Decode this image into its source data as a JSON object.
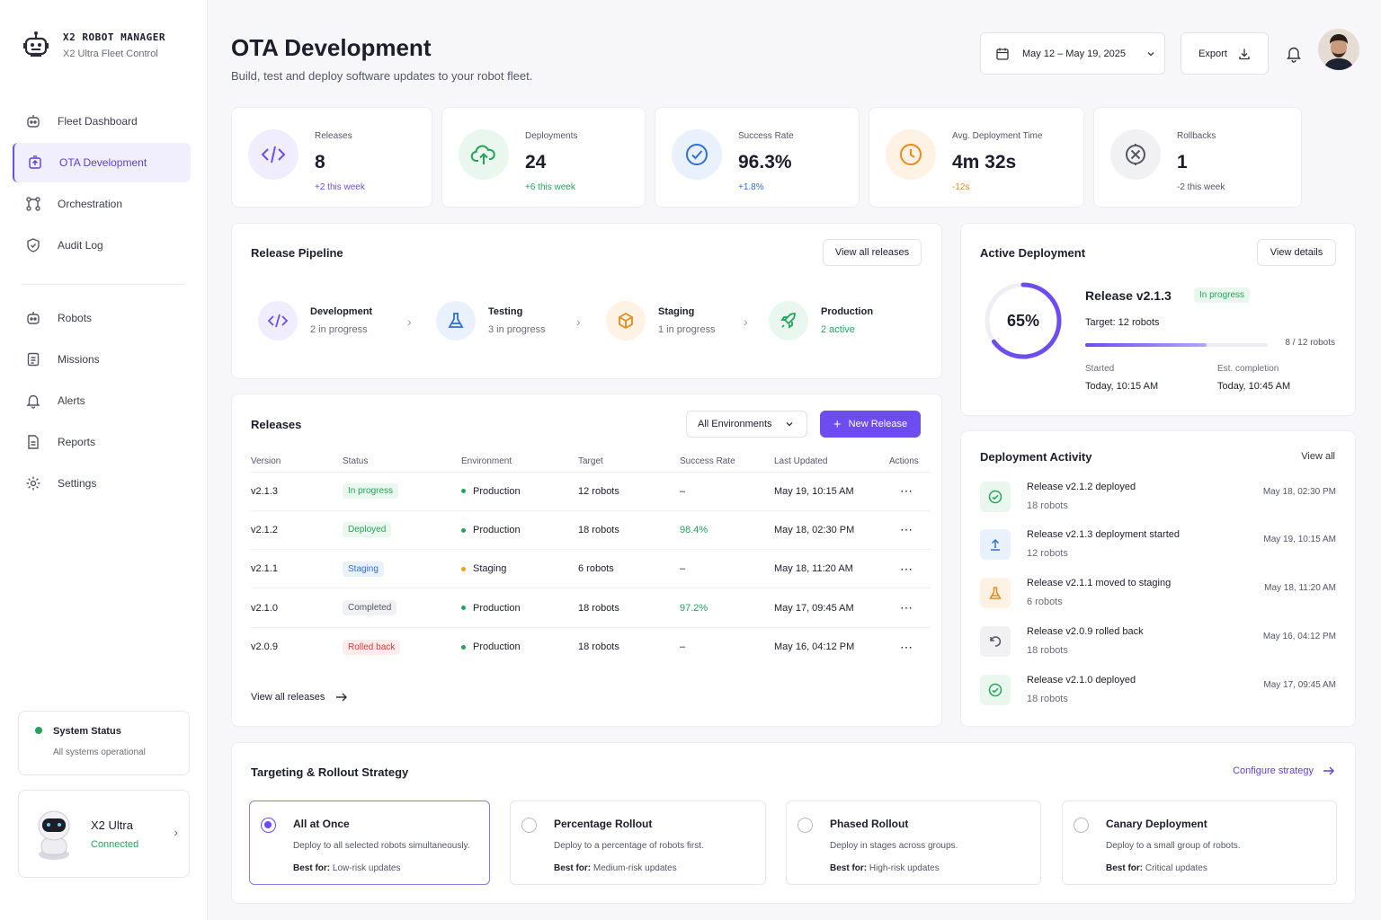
{
  "brand": {
    "name": "X2 ROBOT MANAGER",
    "subtitle": "X2 Ultra Fleet Control"
  },
  "nav": {
    "primary": [
      {
        "label": "Fleet Dashboard"
      },
      {
        "label": "OTA Development"
      },
      {
        "label": "Orchestration"
      },
      {
        "label": "Audit Log"
      }
    ],
    "secondary": [
      {
        "label": "Robots"
      },
      {
        "label": "Missions"
      },
      {
        "label": "Alerts"
      },
      {
        "label": "Reports"
      },
      {
        "label": "Settings"
      }
    ]
  },
  "system_status": {
    "title": "System Status",
    "text": "All systems operational"
  },
  "robot": {
    "name": "X2 Ultra",
    "status": "Connected"
  },
  "header": {
    "title": "OTA Development",
    "subtitle": "Build, test and deploy software updates to your robot fleet.",
    "date_range": "May 12 – May 19, 2025",
    "export_label": "Export"
  },
  "kpis": [
    {
      "label": "Releases",
      "value": "8",
      "delta": "+2 this week",
      "color": "#6d4cf0"
    },
    {
      "label": "Deployments",
      "value": "24",
      "delta": "+6 this week",
      "color": "#22a55a"
    },
    {
      "label": "Success Rate",
      "value": "96.3%",
      "delta": "+1.8%",
      "color": "#2f6fd6"
    },
    {
      "label": "Avg. Deployment Time",
      "value": "4m 32s",
      "delta": "-12s",
      "color": "#e98a1b"
    },
    {
      "label": "Rollbacks",
      "value": "1",
      "delta": "-2 this week",
      "color": "#555566"
    }
  ],
  "pipeline": {
    "title": "Release Pipeline",
    "view_all": "View all releases",
    "stages": [
      {
        "name": "Development",
        "count": "2 in progress"
      },
      {
        "name": "Testing",
        "count": "3 in progress"
      },
      {
        "name": "Staging",
        "count": "1 in progress"
      },
      {
        "name": "Production",
        "count": "2 active"
      }
    ]
  },
  "active_deployment": {
    "title": "Active Deployment",
    "details_label": "View details",
    "percent": "65%",
    "progress": 0.65,
    "release": "Release v2.1.3",
    "status": "In progress",
    "target": "Target: 12 robots",
    "robots": "8 / 12 robots",
    "robots_fraction": 0.6667,
    "started_label": "Started",
    "started": "Today, 10:15 AM",
    "est_label": "Est. completion",
    "est": "Today, 10:45 AM"
  },
  "releases": {
    "title": "Releases",
    "env_filter": "All Environments",
    "new_label": "New Release",
    "view_all": "View all releases",
    "columns": [
      "Version",
      "Status",
      "Environment",
      "Target",
      "Success Rate",
      "Last Updated",
      "Actions"
    ],
    "rows": [
      {
        "version": "v2.1.3",
        "status": "In progress",
        "env": "Production",
        "target": "12 robots",
        "rate": "–",
        "updated": "May 19, 10:15 AM"
      },
      {
        "version": "v2.1.2",
        "status": "Deployed",
        "env": "Production",
        "target": "18 robots",
        "rate": "98.4%",
        "updated": "May 18, 02:30 PM"
      },
      {
        "version": "v2.1.1",
        "status": "Staging",
        "env": "Staging",
        "target": "6 robots",
        "rate": "–",
        "updated": "May 18, 11:20 AM"
      },
      {
        "version": "v2.1.0",
        "status": "Completed",
        "env": "Production",
        "target": "18 robots",
        "rate": "97.2%",
        "updated": "May 17, 09:45 AM"
      },
      {
        "version": "v2.0.9",
        "status": "Rolled back",
        "env": "Production",
        "target": "18 robots",
        "rate": "–",
        "updated": "May 16, 04:12 PM"
      }
    ]
  },
  "activity": {
    "title": "Deployment Activity",
    "view_all": "View all",
    "items": [
      {
        "text": "Release v2.1.2 deployed",
        "robots": "18 robots",
        "time": "May 18, 02:30 PM"
      },
      {
        "text": "Release v2.1.3 deployment started",
        "robots": "12 robots",
        "time": "May 19, 10:15 AM"
      },
      {
        "text": "Release v2.1.1 moved to staging",
        "robots": "6 robots",
        "time": "May 18, 11:20 AM"
      },
      {
        "text": "Release v2.0.9 rolled back",
        "robots": "18 robots",
        "time": "May 16, 04:12 PM"
      },
      {
        "text": "Release v2.1.0 deployed",
        "robots": "18 robots",
        "time": "May 17, 09:45 AM"
      }
    ]
  },
  "strategy": {
    "title": "Targeting & Rollout Strategy",
    "configure": "Configure strategy",
    "best_for_label": "Best for:",
    "options": [
      {
        "title": "All at Once",
        "desc": "Deploy to all selected robots simultaneously.",
        "best": "Low-risk updates"
      },
      {
        "title": "Percentage Rollout",
        "desc": "Deploy to a percentage of robots first.",
        "best": "Medium-risk updates"
      },
      {
        "title": "Phased Rollout",
        "desc": "Deploy in stages across groups.",
        "best": "High-risk updates"
      },
      {
        "title": "Canary Deployment",
        "desc": "Deploy to a small group of robots.",
        "best": "Critical updates"
      }
    ]
  }
}
